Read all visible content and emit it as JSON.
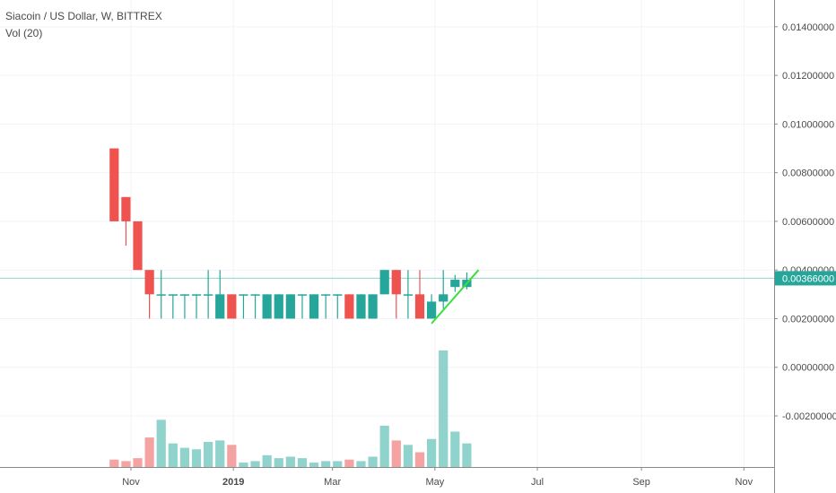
{
  "legend": {
    "symbol_line": "Siacoin / US Dollar, W, BITTREX",
    "volume_line": "Vol (20)"
  },
  "colors": {
    "up": "#26a69a",
    "down": "#ef5350",
    "up_volume": "#8fd3cc",
    "down_volume": "#f4a3a2",
    "trendline": "#39e03a",
    "price_line": "#8fd3cc",
    "grid": "#f0f3f7",
    "axis_text": "#4a4a4a"
  },
  "chart_data": {
    "type": "candlestick",
    "title": "Siacoin / US Dollar, W, BITTREX",
    "volume_label": "Vol (20)",
    "price_axis": {
      "ticks": [
        "-0.00200000",
        "0.00000000",
        "0.00200000",
        "0.00400000",
        "0.00600000",
        "0.00800000",
        "0.01000000",
        "0.01200000",
        "0.01400000"
      ],
      "ylim": [
        -0.0041,
        0.0151
      ]
    },
    "time_axis": {
      "labels": [
        {
          "text": "Nov",
          "date": "2018-11-01",
          "bold": false
        },
        {
          "text": "2019",
          "date": "2019-01-01",
          "bold": true
        },
        {
          "text": "Mar",
          "date": "2019-03-01",
          "bold": false
        },
        {
          "text": "May",
          "date": "2019-05-01",
          "bold": false
        },
        {
          "text": "Jul",
          "date": "2019-07-01",
          "bold": false
        },
        {
          "text": "Sep",
          "date": "2019-09-01",
          "bold": false
        },
        {
          "text": "Nov",
          "date": "2019-11-01",
          "bold": false
        }
      ],
      "xlim": [
        "2018-08-15",
        "2019-11-19"
      ]
    },
    "last_price": "0.00366000",
    "last_price_value": 0.00366,
    "candles": [
      {
        "date": "2018-10-22",
        "open": 0.009,
        "high": 0.009,
        "low": 0.006,
        "close": 0.006,
        "volume": 5
      },
      {
        "date": "2018-10-29",
        "open": 0.007,
        "high": 0.007,
        "low": 0.005,
        "close": 0.006,
        "volume": 4
      },
      {
        "date": "2018-11-05",
        "open": 0.006,
        "high": 0.006,
        "low": 0.004,
        "close": 0.004,
        "volume": 6
      },
      {
        "date": "2018-11-12",
        "open": 0.004,
        "high": 0.004,
        "low": 0.002,
        "close": 0.003,
        "volume": 20
      },
      {
        "date": "2018-11-19",
        "open": 0.003,
        "high": 0.004,
        "low": 0.002,
        "close": 0.003,
        "volume": 32
      },
      {
        "date": "2018-11-26",
        "open": 0.003,
        "high": 0.003,
        "low": 0.002,
        "close": 0.003,
        "volume": 16
      },
      {
        "date": "2018-12-03",
        "open": 0.003,
        "high": 0.003,
        "low": 0.002,
        "close": 0.003,
        "volume": 13
      },
      {
        "date": "2018-12-10",
        "open": 0.003,
        "high": 0.003,
        "low": 0.002,
        "close": 0.003,
        "volume": 12
      },
      {
        "date": "2018-12-17",
        "open": 0.003,
        "high": 0.004,
        "low": 0.002,
        "close": 0.003,
        "volume": 17
      },
      {
        "date": "2018-12-24",
        "open": 0.002,
        "high": 0.004,
        "low": 0.002,
        "close": 0.003,
        "volume": 18
      },
      {
        "date": "2018-12-31",
        "open": 0.003,
        "high": 0.003,
        "low": 0.002,
        "close": 0.002,
        "volume": 15
      },
      {
        "date": "2019-01-07",
        "open": 0.003,
        "high": 0.003,
        "low": 0.002,
        "close": 0.003,
        "volume": 3
      },
      {
        "date": "2019-01-14",
        "open": 0.003,
        "high": 0.003,
        "low": 0.002,
        "close": 0.003,
        "volume": 4
      },
      {
        "date": "2019-01-21",
        "open": 0.002,
        "high": 0.003,
        "low": 0.002,
        "close": 0.003,
        "volume": 8
      },
      {
        "date": "2019-01-28",
        "open": 0.002,
        "high": 0.003,
        "low": 0.002,
        "close": 0.003,
        "volume": 6
      },
      {
        "date": "2019-02-04",
        "open": 0.002,
        "high": 0.003,
        "low": 0.002,
        "close": 0.003,
        "volume": 7
      },
      {
        "date": "2019-02-11",
        "open": 0.003,
        "high": 0.003,
        "low": 0.002,
        "close": 0.003,
        "volume": 6
      },
      {
        "date": "2019-02-18",
        "open": 0.002,
        "high": 0.003,
        "low": 0.002,
        "close": 0.003,
        "volume": 3
      },
      {
        "date": "2019-02-25",
        "open": 0.003,
        "high": 0.003,
        "low": 0.002,
        "close": 0.003,
        "volume": 4
      },
      {
        "date": "2019-03-04",
        "open": 0.003,
        "high": 0.003,
        "low": 0.002,
        "close": 0.003,
        "volume": 4
      },
      {
        "date": "2019-03-11",
        "open": 0.003,
        "high": 0.003,
        "low": 0.002,
        "close": 0.002,
        "volume": 5
      },
      {
        "date": "2019-03-18",
        "open": 0.002,
        "high": 0.003,
        "low": 0.002,
        "close": 0.003,
        "volume": 4
      },
      {
        "date": "2019-03-25",
        "open": 0.002,
        "high": 0.003,
        "low": 0.002,
        "close": 0.003,
        "volume": 7
      },
      {
        "date": "2019-04-01",
        "open": 0.003,
        "high": 0.004,
        "low": 0.003,
        "close": 0.004,
        "volume": 28
      },
      {
        "date": "2019-04-08",
        "open": 0.004,
        "high": 0.004,
        "low": 0.002,
        "close": 0.003,
        "volume": 18
      },
      {
        "date": "2019-04-15",
        "open": 0.003,
        "high": 0.004,
        "low": 0.002,
        "close": 0.003,
        "volume": 15
      },
      {
        "date": "2019-04-22",
        "open": 0.003,
        "high": 0.004,
        "low": 0.002,
        "close": 0.002,
        "volume": 10
      },
      {
        "date": "2019-04-29",
        "open": 0.002,
        "high": 0.003,
        "low": 0.002,
        "close": 0.0027,
        "volume": 19
      },
      {
        "date": "2019-05-06",
        "open": 0.0027,
        "high": 0.004,
        "low": 0.0024,
        "close": 0.003,
        "volume": 79
      },
      {
        "date": "2019-05-13",
        "open": 0.0033,
        "high": 0.0038,
        "low": 0.0031,
        "close": 0.0036,
        "volume": 24
      },
      {
        "date": "2019-05-20",
        "open": 0.0033,
        "high": 0.0039,
        "low": 0.0032,
        "close": 0.0036,
        "volume": 16
      }
    ],
    "trendline": {
      "from": {
        "date": "2019-04-29",
        "price": 0.0018
      },
      "to": {
        "date": "2019-05-27",
        "price": 0.004
      }
    },
    "grid": true,
    "legend_position": "top-left"
  }
}
